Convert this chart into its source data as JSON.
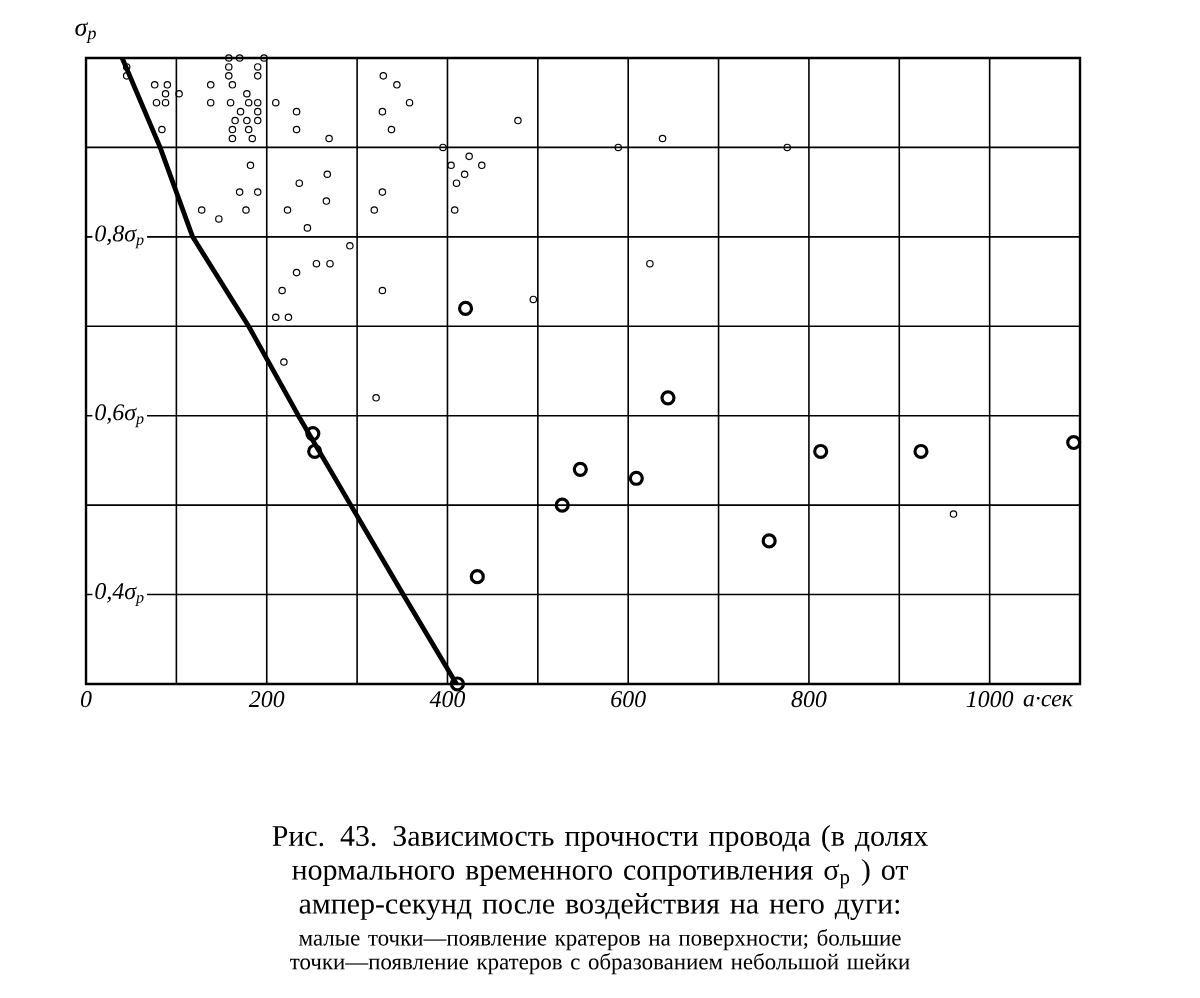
{
  "chart_data": {
    "type": "scatter",
    "xlabel": "a·сек",
    "ylabel": "σ$_{p}$",
    "xlim": [
      0,
      1100
    ],
    "ylim": [
      0.3,
      1.0
    ],
    "xticks": [
      0,
      {
        "value": 100,
        "label": null
      },
      200,
      {
        "value": 300,
        "label": null
      },
      400,
      {
        "value": 500,
        "label": null
      },
      600,
      {
        "value": 700,
        "label": null
      },
      800,
      {
        "value": 900,
        "label": null
      },
      1000,
      {
        "value": 1100,
        "label": null
      }
    ],
    "yticks": [
      {
        "value": 0.3,
        "label": null
      },
      {
        "value": 0.4,
        "label": "0,4σ$_{p}$"
      },
      {
        "value": 0.5,
        "label": null
      },
      {
        "value": 0.6,
        "label": "0,6σ$_{p}$"
      },
      {
        "value": 0.7,
        "label": null
      },
      {
        "value": 0.8,
        "label": "0,8σ$_{p}$"
      },
      {
        "value": 0.9,
        "label": null
      },
      {
        "value": 1.0,
        "label": null
      }
    ],
    "grid": true,
    "marker": "circle",
    "series": [
      {
        "color": "#000000",
        "x": [
          45,
          45,
          76,
          90,
          103,
          78,
          88,
          88,
          84,
          158,
          170,
          197,
          158,
          158,
          162,
          190,
          190,
          138,
          138,
          160,
          178,
          190,
          180,
          190,
          171,
          165,
          178,
          190,
          162,
          162,
          180,
          184,
          210,
          233,
          233,
          269,
          329,
          344,
          358,
          328,
          338,
          395,
          404,
          424,
          438,
          419,
          410,
          408,
          478,
          182,
          170,
          190,
          177,
          128,
          147,
          223,
          236,
          267,
          266,
          328,
          319,
          245,
          292,
          270,
          255,
          233,
          217,
          328,
          210,
          224,
          219,
          495,
          321,
          589,
          638,
          776,
          624,
          960
        ],
        "values": [
          0.99,
          0.98,
          0.97,
          0.97,
          0.96,
          0.95,
          0.96,
          0.95,
          0.92,
          1.0,
          1.0,
          1.0,
          0.99,
          0.98,
          0.97,
          0.99,
          0.98,
          0.97,
          0.95,
          0.95,
          0.96,
          0.95,
          0.95,
          0.94,
          0.94,
          0.93,
          0.93,
          0.93,
          0.92,
          0.91,
          0.92,
          0.91,
          0.95,
          0.94,
          0.92,
          0.91,
          0.98,
          0.97,
          0.95,
          0.94,
          0.92,
          0.9,
          0.88,
          0.89,
          0.88,
          0.87,
          0.86,
          0.83,
          0.93,
          0.88,
          0.85,
          0.85,
          0.83,
          0.83,
          0.82,
          0.83,
          0.86,
          0.87,
          0.84,
          0.85,
          0.83,
          0.81,
          0.79,
          0.77,
          0.77,
          0.76,
          0.74,
          0.74,
          0.71,
          0.71,
          0.66,
          0.73,
          0.62,
          0.9,
          0.91,
          0.9,
          0.77,
          0.49
        ]
      },
      {
        "color": "#000000",
        "x": [
          420,
          251,
          253,
          433,
          527,
          547,
          609,
          644,
          756,
          813,
          924,
          1093,
          411
        ],
        "values": [
          0.72,
          0.58,
          0.56,
          0.42,
          0.5,
          0.54,
          0.53,
          0.62,
          0.46,
          0.56,
          0.56,
          0.57,
          0.3
        ]
      },
      {
        "type": "line",
        "color": "#000000",
        "marker": "none",
        "line_style": "solid",
        "x": [
          40,
          82,
          118,
          180,
          235,
          293,
          351,
          410
        ],
        "values": [
          1.0,
          0.9,
          0.8,
          0.7,
          0.6,
          0.5,
          0.4,
          0.3
        ]
      }
    ],
    "annotations": [
      "Рис. 43. Зависимость прочности провода (в долях нормального временного сопротивления σ$_{p}$ ) от ампер-секунд после воздействия на него дуги:",
      "малые точки—появление кратеров на поверхности; большие точки—появление кратеров с образованием небольшой шейки"
    ]
  }
}
